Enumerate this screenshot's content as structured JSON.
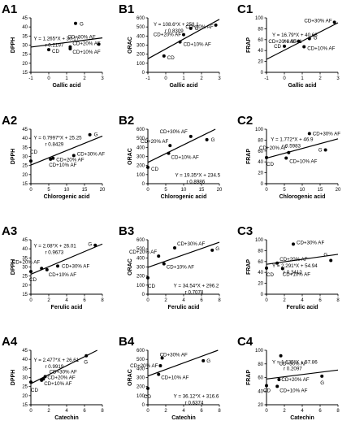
{
  "chart_data": [
    {
      "id": "A1",
      "type": "scatter",
      "xlabel": "Gallic acid",
      "ylabel": "DPPH",
      "xlim": [
        -1,
        3
      ],
      "ylim": [
        15,
        45
      ],
      "xticks": [
        -1,
        0,
        1,
        2,
        3
      ],
      "yticks": [
        15,
        20,
        25,
        30,
        35,
        40,
        45
      ],
      "points": [
        {
          "label": "CD",
          "x": 0,
          "y": 27.5
        },
        {
          "label": "G",
          "x": 1.5,
          "y": 42
        },
        {
          "label": "CD+20% AF",
          "x": 1.2,
          "y": 29
        },
        {
          "label": "CD+10% AF",
          "x": 1.2,
          "y": 28
        },
        {
          "label": "CD+30% AF",
          "x": 2.8,
          "y": 30.5
        }
      ],
      "equation": "Y = 1.265*X + 30.17",
      "r_text": "r   0.2197",
      "fit": {
        "slope": 1.265,
        "intercept": 30.17
      }
    },
    {
      "id": "B1",
      "type": "scatter",
      "xlabel": "Gallic acid",
      "ylabel": "ORAC",
      "xlim": [
        -1,
        3
      ],
      "ylim": [
        0,
        600
      ],
      "xticks": [
        -1,
        0,
        1,
        2,
        3
      ],
      "yticks": [
        0,
        100,
        200,
        300,
        400,
        500,
        600
      ],
      "points": [
        {
          "label": "CD",
          "x": -0.1,
          "y": 180
        },
        {
          "label": "CD+10% AF",
          "x": 0.8,
          "y": 335
        },
        {
          "label": "CD+20% AF",
          "x": 1.0,
          "y": 415
        },
        {
          "label": "G",
          "x": 1.4,
          "y": 485
        },
        {
          "label": "CD+30% AF",
          "x": 2.8,
          "y": 520
        }
      ],
      "equation": "Y = 108.6*X + 258.1",
      "r_text": "r   0.8309",
      "fit": {
        "slope": 108.6,
        "intercept": 258.1
      }
    },
    {
      "id": "C1",
      "type": "scatter",
      "xlabel": "Gallic acid",
      "ylabel": "FRAP",
      "xlim": [
        -1,
        3
      ],
      "ylim": [
        0,
        100
      ],
      "xticks": [
        -1,
        0,
        1,
        2,
        3
      ],
      "yticks": [
        0,
        20,
        40,
        60,
        80,
        100
      ],
      "points": [
        {
          "label": "CD",
          "x": 0,
          "y": 48
        },
        {
          "label": "CD+10% AF",
          "x": 1.1,
          "y": 47
        },
        {
          "label": "CD+20% AF",
          "x": 0.8,
          "y": 57
        },
        {
          "label": "G",
          "x": 1.4,
          "y": 62
        },
        {
          "label": "CD+30% AF",
          "x": 2.8,
          "y": 92
        }
      ],
      "equation": "Y = 16.79*X + 40.68",
      "r_text": "r   0.9341",
      "fit": {
        "slope": 16.79,
        "intercept": 40.68
      }
    },
    {
      "id": "A2",
      "type": "scatter",
      "xlabel": "Chlorogenic acid",
      "ylabel": "DPPH",
      "xlim": [
        0,
        20
      ],
      "ylim": [
        15,
        45
      ],
      "xticks": [
        0,
        5,
        10,
        15,
        20
      ],
      "yticks": [
        15,
        20,
        25,
        30,
        35,
        40,
        45
      ],
      "points": [
        {
          "label": "CD",
          "x": 0,
          "y": 27.5
        },
        {
          "label": "CD+10% AF",
          "x": 5.5,
          "y": 28.5
        },
        {
          "label": "CD+20% AF",
          "x": 6.2,
          "y": 29
        },
        {
          "label": "CD+30% AF",
          "x": 12,
          "y": 30.5
        },
        {
          "label": "G",
          "x": 16.5,
          "y": 42
        }
      ],
      "equation": "Y = 0.7997*X + 25.25",
      "r_text": "r   0.8429",
      "fit": {
        "slope": 0.7997,
        "intercept": 25.25
      }
    },
    {
      "id": "B2",
      "type": "scatter",
      "xlabel": "Chlorogenic acid",
      "ylabel": "ORAC",
      "xlim": [
        0,
        20
      ],
      "ylim": [
        0,
        600
      ],
      "xticks": [
        0,
        5,
        10,
        15,
        20
      ],
      "yticks": [
        0,
        100,
        200,
        300,
        400,
        500,
        600
      ],
      "points": [
        {
          "label": "CD",
          "x": 0,
          "y": 180
        },
        {
          "label": "CD+10% AF",
          "x": 5.8,
          "y": 335
        },
        {
          "label": "CD+20% AF",
          "x": 6.2,
          "y": 420
        },
        {
          "label": "CD+30% AF",
          "x": 12,
          "y": 520
        },
        {
          "label": "G",
          "x": 16.5,
          "y": 485
        }
      ],
      "equation": "Y = 19.35*X + 234.5",
      "r_text": "r   0.8986",
      "fit": {
        "slope": 19.35,
        "intercept": 234.5
      }
    },
    {
      "id": "C2",
      "type": "scatter",
      "xlabel": "Chlorogenic acid",
      "ylabel": "FRAP",
      "xlim": [
        0,
        20
      ],
      "ylim": [
        0,
        100
      ],
      "xticks": [
        0,
        5,
        10,
        15,
        20
      ],
      "yticks": [
        0,
        20,
        40,
        60,
        80,
        100
      ],
      "points": [
        {
          "label": "CD",
          "x": 0,
          "y": 48
        },
        {
          "label": "CD+10% AF",
          "x": 5.5,
          "y": 47
        },
        {
          "label": "CD+20% AF",
          "x": 6.2,
          "y": 57
        },
        {
          "label": "CD+30% AF",
          "x": 12,
          "y": 92
        },
        {
          "label": "G",
          "x": 16.5,
          "y": 62
        }
      ],
      "equation": "Y = 1.772*X + 46.9",
      "r_text": "r   0.5983",
      "fit": {
        "slope": 1.772,
        "intercept": 46.9
      }
    },
    {
      "id": "A3",
      "type": "scatter",
      "xlabel": "Ferulic acid",
      "ylabel": "DPPH",
      "xlim": [
        0,
        8
      ],
      "ylim": [
        15,
        45
      ],
      "xticks": [
        0,
        2,
        4,
        6,
        8
      ],
      "yticks": [
        15,
        20,
        25,
        30,
        35,
        40,
        45
      ],
      "points": [
        {
          "label": "CD",
          "x": 0,
          "y": 27.5
        },
        {
          "label": "CD+10% AF",
          "x": 1.8,
          "y": 28.5
        },
        {
          "label": "CD+20% AF",
          "x": 1.2,
          "y": 29.2
        },
        {
          "label": "CD+30% AF",
          "x": 3.0,
          "y": 30.5
        },
        {
          "label": "G",
          "x": 7.2,
          "y": 42
        }
      ],
      "equation": "Y = 2.08*X + 26.01",
      "r_text": "r   0.9673",
      "fit": {
        "slope": 2.08,
        "intercept": 26.01
      }
    },
    {
      "id": "B3",
      "type": "scatter",
      "xlabel": "Ferulic acid",
      "ylabel": "ORAC",
      "xlim": [
        0,
        8
      ],
      "ylim": [
        0,
        600
      ],
      "xticks": [
        0,
        2,
        4,
        6,
        8
      ],
      "yticks": [
        0,
        100,
        200,
        300,
        400,
        500,
        600
      ],
      "points": [
        {
          "label": "CD",
          "x": 0,
          "y": 180
        },
        {
          "label": "CD+10% AF",
          "x": 1.8,
          "y": 335
        },
        {
          "label": "CD+20% AF",
          "x": 1.2,
          "y": 420
        },
        {
          "label": "CD+30% AF",
          "x": 3.0,
          "y": 510
        },
        {
          "label": "G",
          "x": 7.2,
          "y": 485
        }
      ],
      "equation": "Y = 34.54*X + 296.2",
      "r_text": "r   0.7078",
      "fit": {
        "slope": 34.54,
        "intercept": 296.2
      }
    },
    {
      "id": "C3",
      "type": "scatter",
      "xlabel": "Ferulic acid",
      "ylabel": "FRAP",
      "xlim": [
        0,
        8
      ],
      "ylim": [
        0,
        100
      ],
      "xticks": [
        0,
        2,
        4,
        6,
        8
      ],
      "yticks": [
        0,
        20,
        40,
        60,
        80,
        100
      ],
      "points": [
        {
          "label": "CD",
          "x": 0,
          "y": 48
        },
        {
          "label": "CD+10% AF",
          "x": 1.8,
          "y": 47
        },
        {
          "label": "CD+20% AF",
          "x": 1.2,
          "y": 57
        },
        {
          "label": "CD+30% AF",
          "x": 3.0,
          "y": 92
        },
        {
          "label": "G",
          "x": 7.2,
          "y": 62
        }
      ],
      "equation": "Y = 2.291*X + 54.94",
      "r_text": "r   0.3412",
      "fit": {
        "slope": 2.291,
        "intercept": 54.94
      }
    },
    {
      "id": "A4",
      "type": "scatter",
      "xlabel": "Catechin",
      "ylabel": "DPPH",
      "xlim": [
        0,
        8
      ],
      "ylim": [
        15,
        45
      ],
      "xticks": [
        0,
        2,
        4,
        6,
        8
      ],
      "yticks": [
        15,
        20,
        25,
        30,
        35,
        40,
        45
      ],
      "points": [
        {
          "label": "CD",
          "x": 0,
          "y": 27.5
        },
        {
          "label": "CD+10% AF",
          "x": 1.2,
          "y": 28.5
        },
        {
          "label": "CD+20% AF",
          "x": 1.4,
          "y": 29.2
        },
        {
          "label": "CD+30% AF",
          "x": 1.6,
          "y": 30.5
        },
        {
          "label": "G",
          "x": 6.2,
          "y": 42
        }
      ],
      "equation": "Y = 2.477*X + 26.61",
      "r_text": "r   0.9919",
      "fit": {
        "slope": 2.477,
        "intercept": 26.61
      }
    },
    {
      "id": "B4",
      "type": "scatter",
      "xlabel": "Catechin",
      "ylabel": "ORAC",
      "xlim": [
        0,
        8
      ],
      "ylim": [
        0,
        600
      ],
      "xticks": [
        0,
        2,
        4,
        6,
        8
      ],
      "yticks": [
        0,
        100,
        200,
        300,
        400,
        500,
        600
      ],
      "points": [
        {
          "label": "CD",
          "x": 0,
          "y": 180
        },
        {
          "label": "CD+10% AF",
          "x": 1.2,
          "y": 335
        },
        {
          "label": "CD+20% AF",
          "x": 1.4,
          "y": 430
        },
        {
          "label": "CD+30% AF",
          "x": 1.6,
          "y": 515
        },
        {
          "label": "G",
          "x": 6.2,
          "y": 485
        }
      ],
      "equation": "Y = 36.12*X + 316.6",
      "r_text": "r   0.6374",
      "fit": {
        "slope": 36.12,
        "intercept": 316.6
      }
    },
    {
      "id": "C4",
      "type": "scatter",
      "xlabel": "Catechin",
      "ylabel": "FRAP",
      "xlim": [
        0,
        8
      ],
      "ylim": [
        20,
        100
      ],
      "xticks": [
        0,
        2,
        4,
        6,
        8
      ],
      "yticks": [
        20,
        40,
        60,
        80,
        100
      ],
      "points": [
        {
          "label": "CD",
          "x": 0,
          "y": 48
        },
        {
          "label": "CD+10% AF",
          "x": 1.2,
          "y": 47
        },
        {
          "label": "CD+20% AF",
          "x": 1.4,
          "y": 57
        },
        {
          "label": "CD+30% AF",
          "x": 1.6,
          "y": 92
        },
        {
          "label": "G",
          "x": 6.2,
          "y": 62
        }
      ],
      "equation": "Y = 1.635*X + 57.86",
      "r_text": "r   0.2097",
      "fit": {
        "slope": 1.635,
        "intercept": 57.86
      }
    }
  ]
}
